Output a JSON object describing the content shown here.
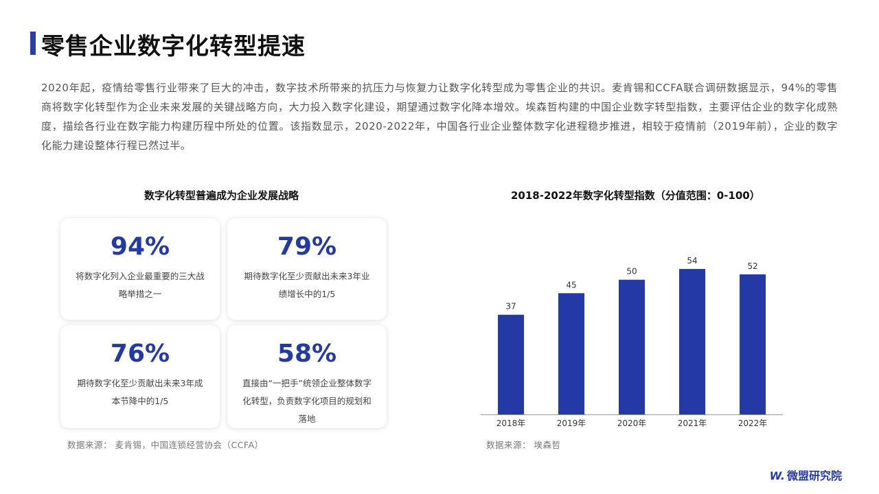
{
  "header": {
    "title": "零售企业数字化转型提速"
  },
  "intro": "2020年起，疫情给零售行业带来了巨大的冲击，数字技术所带来的抗压力与恢复力让数字化转型成为零售企业的共识。麦肯锡和CCFA联合调研数据显示，94%的零售商将数字化转型作为企业未来发展的关键战略方向，大力投入数字化建设，期望通过数字化降本增效。埃森哲构建的中国企业数字转型指数，主要评估企业的数字化成熟度，描绘各行业在数字能力构建历程中所处的位置。该指数显示，2020-2022年，中国各行业企业整体数字化进程稳步推进，相较于疫情前（2019年前），企业的数字化能力建设整体行程已然过半。",
  "left_panel": {
    "title": "数字化转型普遍成为企业发展战略",
    "cards": [
      {
        "value": "94%",
        "desc": "将数字化列入企业最重要的三大战略举措之一"
      },
      {
        "value": "79%",
        "desc": "期待数字化至少贡献出未来3年业绩增长中的1/5"
      },
      {
        "value": "76%",
        "desc": "期待数字化至少贡献出未来3年成本节降中的1/5"
      },
      {
        "value": "58%",
        "desc": "直接由“一把手”统领企业整体数字化转型，负责数字化项目的规划和落地"
      }
    ],
    "source": "数据来源： 麦肯锡，中国连锁经营协会（CCFA）"
  },
  "right_panel": {
    "title": "2018-2022年数字化转型指数（分值范围：0-100）",
    "source": "数据来源： 埃森哲"
  },
  "chart_data": {
    "type": "bar",
    "title": "2018-2022年数字化转型指数（分值范围：0-100）",
    "categories": [
      "2018年",
      "2019年",
      "2020年",
      "2021年",
      "2022年"
    ],
    "values": [
      37,
      45,
      50,
      54,
      52
    ],
    "ylim": [
      0,
      54
    ],
    "bar_color": "#2438a6",
    "data_labels": true,
    "grid": false
  },
  "brand": {
    "mark": "W.",
    "name": "微盟研究院",
    "color": "#253a9e"
  }
}
